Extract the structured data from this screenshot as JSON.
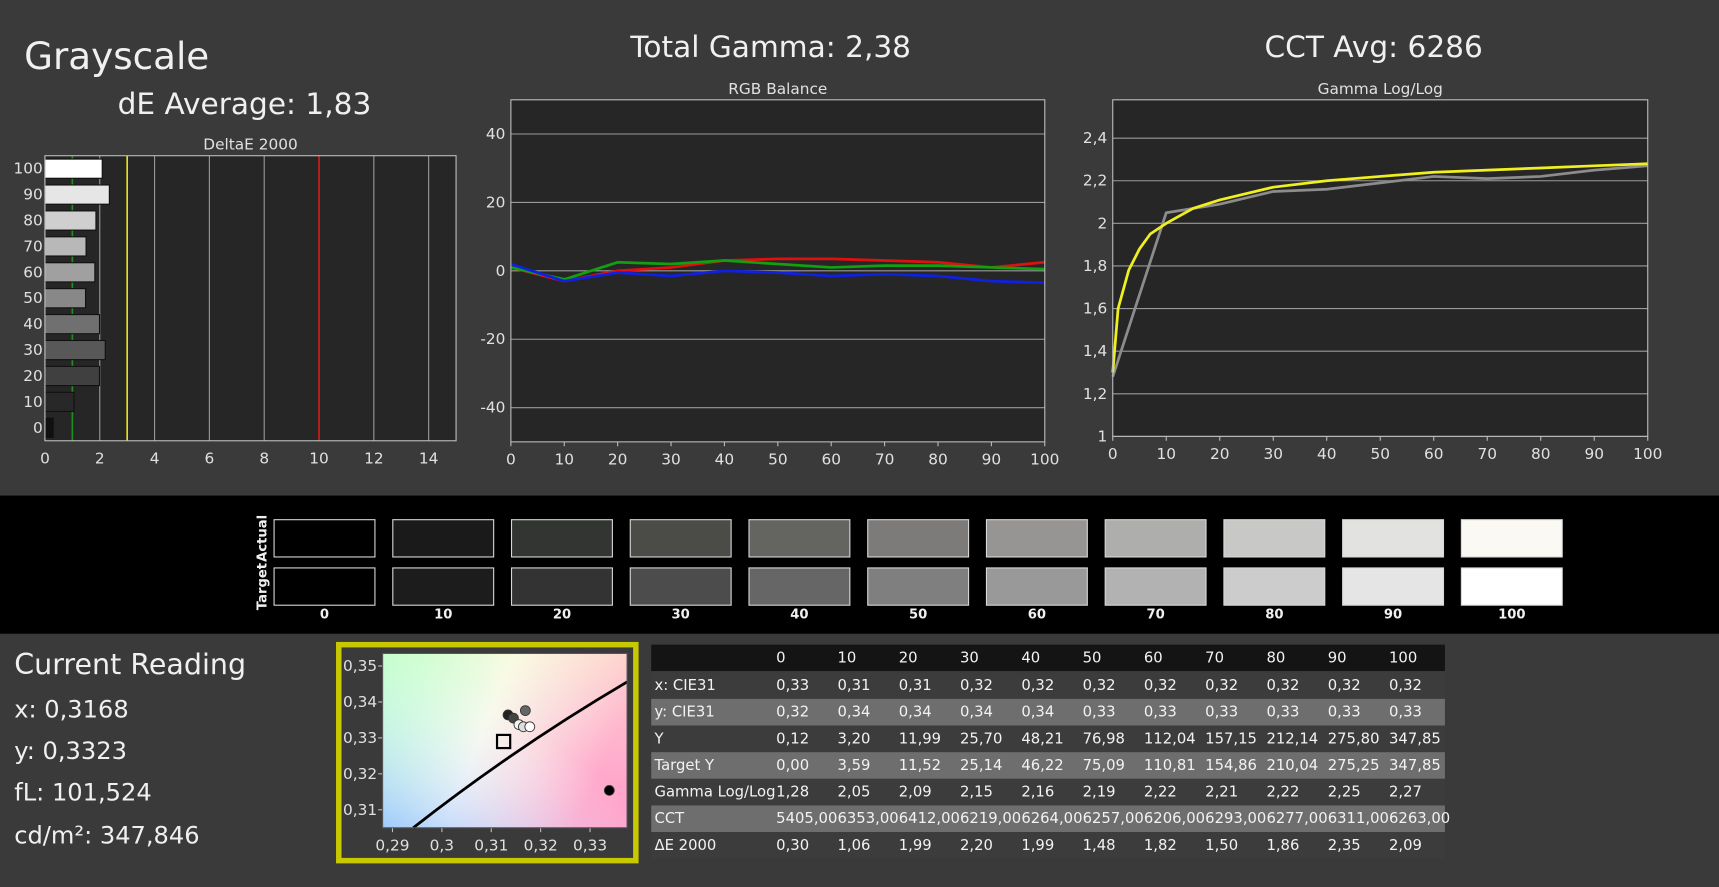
{
  "title": "Grayscale",
  "de_average": "dE Average: 1,83",
  "total_gamma": "Total Gamma: 2,38",
  "cct_avg": "CCT Avg: 6286",
  "chart_data": [
    {
      "type": "bar",
      "orientation": "horizontal",
      "title": "DeltaE 2000",
      "categories": [
        "100",
        "90",
        "80",
        "70",
        "60",
        "50",
        "40",
        "30",
        "20",
        "10",
        "0"
      ],
      "values": [
        2.09,
        2.35,
        1.86,
        1.5,
        1.82,
        1.48,
        1.99,
        2.2,
        1.99,
        1.06,
        0.3
      ],
      "colors": [
        "#ffffff",
        "#e6e6e6",
        "#cfcfcf",
        "#b8b8b8",
        "#a0a0a0",
        "#888888",
        "#707070",
        "#585858",
        "#404040",
        "#282828",
        "#101010"
      ],
      "xlim": [
        0,
        15
      ],
      "xticks": [
        0,
        2,
        4,
        6,
        8,
        10,
        12,
        14
      ],
      "grid": "x",
      "reference_lines": [
        {
          "value": 1,
          "color": "#1f8f1f"
        },
        {
          "value": 3,
          "color": "#e8e020"
        },
        {
          "value": 10,
          "color": "#d01818"
        }
      ]
    },
    {
      "type": "line",
      "title": "RGB Balance",
      "x": [
        0,
        10,
        20,
        30,
        40,
        50,
        60,
        70,
        80,
        90,
        100
      ],
      "series": [
        {
          "color": "#e01010",
          "values": [
            1,
            -3,
            0,
            1,
            3,
            3.5,
            3.5,
            3,
            2.5,
            1,
            2.5
          ]
        },
        {
          "color": "#10a010",
          "values": [
            1,
            -2.5,
            2.5,
            2,
            3,
            2,
            1,
            1.5,
            1.5,
            1,
            0.5
          ]
        },
        {
          "color": "#1020e0",
          "values": [
            2,
            -3,
            -0.5,
            -1.5,
            0,
            -0.5,
            -1.5,
            -1,
            -1.5,
            -3,
            -3.5
          ]
        }
      ],
      "xlim": [
        0,
        100
      ],
      "xticks": [
        0,
        10,
        20,
        30,
        40,
        50,
        60,
        70,
        80,
        90,
        100
      ],
      "ylim": [
        -50,
        50
      ],
      "yticks": [
        -40,
        -20,
        0,
        20,
        40
      ],
      "grid": "y"
    },
    {
      "type": "line",
      "title": "Gamma Log/Log",
      "series": [
        {
          "color": "#8c8c8c",
          "x": [
            0,
            10,
            20,
            30,
            40,
            50,
            60,
            70,
            80,
            90,
            100
          ],
          "values": [
            1.28,
            2.05,
            2.09,
            2.15,
            2.16,
            2.19,
            2.22,
            2.21,
            2.22,
            2.25,
            2.27
          ]
        },
        {
          "color": "#f0f020",
          "x": [
            0,
            1,
            3,
            5,
            7,
            10,
            15,
            20,
            30,
            40,
            50,
            60,
            70,
            80,
            90,
            100
          ],
          "values": [
            1.3,
            1.6,
            1.78,
            1.88,
            1.95,
            2.0,
            2.07,
            2.11,
            2.17,
            2.2,
            2.22,
            2.24,
            2.25,
            2.26,
            2.27,
            2.28
          ]
        }
      ],
      "xlim": [
        0,
        100
      ],
      "xticks": [
        0,
        10,
        20,
        30,
        40,
        50,
        60,
        70,
        80,
        90,
        100
      ],
      "ylim": [
        1,
        2.58
      ],
      "yticks": [
        1,
        {
          "value": 1.2,
          "label": "1,2"
        },
        {
          "value": 1.4,
          "label": "1,4"
        },
        {
          "value": 1.6,
          "label": "1,6"
        },
        {
          "value": 1.8,
          "label": "1,8"
        },
        2,
        {
          "value": 2.2,
          "label": "2,2"
        },
        {
          "value": 2.4,
          "label": "2,4"
        }
      ],
      "grid": "y"
    },
    {
      "type": "scatter",
      "series": [
        {
          "marker": "square",
          "color": "#000000",
          "x": [
            0.3125
          ],
          "values": [
            0.329
          ]
        },
        {
          "marker": "circle",
          "color": "#000000",
          "x": [
            0.3339
          ],
          "values": [
            0.3154
          ]
        },
        {
          "marker": "circle",
          "colors": [
            "#222222",
            "#444444",
            "#f4f4f4",
            "#dddddd",
            "#ffffff",
            "#666666"
          ],
          "x": [
            0.3134,
            0.3145,
            0.3156,
            0.3165,
            0.3178,
            0.3169
          ],
          "values": [
            0.3364,
            0.3355,
            0.3337,
            0.3331,
            0.3331,
            0.3376
          ]
        }
      ],
      "xlim": [
        0.288,
        0.3375
      ],
      "xticks": [
        {
          "value": 0.29,
          "label": "0,29"
        },
        {
          "value": 0.3,
          "label": "0,3"
        },
        {
          "value": 0.31,
          "label": "0,31"
        },
        {
          "value": 0.32,
          "label": "0,32"
        },
        {
          "value": 0.33,
          "label": "0,33"
        }
      ],
      "ylim": [
        0.305,
        0.3535
      ],
      "yticks": [
        {
          "value": 0.31,
          "label": "0,31"
        },
        {
          "value": 0.32,
          "label": "0,32"
        },
        {
          "value": 0.33,
          "label": "0,33"
        },
        {
          "value": 0.34,
          "label": "0,34"
        },
        {
          "value": 0.35,
          "label": "0,35"
        }
      ]
    }
  ],
  "swatches": {
    "row_labels": [
      "Actual",
      "Target"
    ],
    "labels": [
      "0",
      "10",
      "20",
      "30",
      "40",
      "50",
      "60",
      "70",
      "80",
      "90",
      "100"
    ],
    "actual": [
      "#000000",
      "#1a1a1a",
      "#333532",
      "#4b4b48",
      "#646461",
      "#7c7b79",
      "#979594",
      "#aeaeac",
      "#c8c8c6",
      "#e2e2e0",
      "#fbf9f4"
    ],
    "target": [
      "#000000",
      "#1c1c1c",
      "#333333",
      "#4c4c4c",
      "#666666",
      "#7f7f7f",
      "#999999",
      "#b2b2b2",
      "#cccccc",
      "#e5e5e5",
      "#ffffff"
    ]
  },
  "current_reading": {
    "title": "Current Reading",
    "lines": [
      "x: 0,3168",
      "y: 0,3323",
      "fL: 101,524",
      "cd/m²: 347,846"
    ]
  },
  "table": {
    "header": [
      "0",
      "10",
      "20",
      "30",
      "40",
      "50",
      "60",
      "70",
      "80",
      "90",
      "100"
    ],
    "rows": [
      [
        "x: CIE31",
        "0,33",
        "0,31",
        "0,31",
        "0,32",
        "0,32",
        "0,32",
        "0,32",
        "0,32",
        "0,32",
        "0,32",
        "0,32"
      ],
      [
        "y: CIE31",
        "0,32",
        "0,34",
        "0,34",
        "0,34",
        "0,34",
        "0,33",
        "0,33",
        "0,33",
        "0,33",
        "0,33",
        "0,33"
      ],
      [
        "Y",
        "0,12",
        "3,20",
        "11,99",
        "25,70",
        "48,21",
        "76,98",
        "112,04",
        "157,15",
        "212,14",
        "275,80",
        "347,85"
      ],
      [
        "Target Y",
        "0,00",
        "3,59",
        "11,52",
        "25,14",
        "46,22",
        "75,09",
        "110,81",
        "154,86",
        "210,04",
        "275,25",
        "347,85"
      ],
      [
        "Gamma Log/Log",
        "1,28",
        "2,05",
        "2,09",
        "2,15",
        "2,16",
        "2,19",
        "2,22",
        "2,21",
        "2,22",
        "2,25",
        "2,27"
      ],
      [
        "CCT",
        "5405,00",
        "6353,00",
        "6412,00",
        "6219,00",
        "6264,00",
        "6257,00",
        "6206,00",
        "6293,00",
        "6277,00",
        "6311,00",
        "6263,00"
      ],
      [
        "ΔE 2000",
        "0,30",
        "1,06",
        "1,99",
        "2,20",
        "1,99",
        "1,48",
        "1,82",
        "1,50",
        "1,86",
        "2,35",
        "2,09"
      ]
    ]
  }
}
